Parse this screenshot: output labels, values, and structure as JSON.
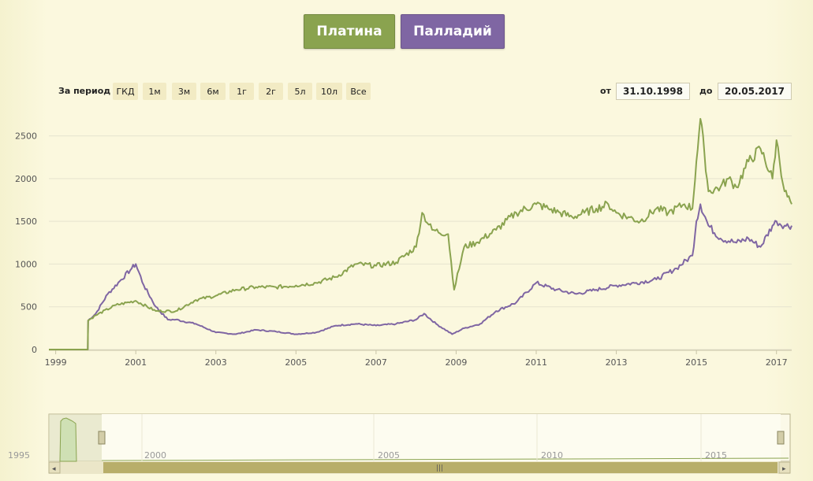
{
  "buttons": {
    "platinum": "Платина",
    "palladium": "Палладий"
  },
  "range_selector": {
    "label": "За период",
    "options": [
      "ГКД",
      "1м",
      "3м",
      "6м",
      "1г",
      "2г",
      "5л",
      "10л",
      "Все"
    ]
  },
  "date_range": {
    "from_label": "от",
    "from": "31.10.1998",
    "to_label": "до",
    "to": "20.05.2017"
  },
  "colors": {
    "platinum": "#8aa34f",
    "palladium": "#7f66a3"
  },
  "chart_data": {
    "type": "line",
    "title": "",
    "xlabel": "",
    "ylabel": "",
    "ylim": [
      0,
      2800
    ],
    "xlim": [
      1998.83,
      2017.38
    ],
    "yticks": [
      0,
      500,
      1000,
      1500,
      2000,
      2500
    ],
    "xticks": [
      1999,
      2001,
      2003,
      2005,
      2007,
      2009,
      2011,
      2013,
      2015,
      2017
    ],
    "x_tick_labels": [
      "1999",
      "2001",
      "2003",
      "2005",
      "2007",
      "2009",
      "2011",
      "2013",
      "2015",
      "2017"
    ],
    "series": [
      {
        "color": "#8aa34f",
        "x": [
          1998.83,
          1999.8,
          1999.81,
          2000.0,
          2000.5,
          2001.0,
          2001.5,
          2002.0,
          2002.5,
          2003.0,
          2003.5,
          2004.0,
          2004.5,
          2005.0,
          2005.5,
          2006.0,
          2006.5,
          2007.0,
          2007.5,
          2008.0,
          2008.15,
          2008.4,
          2008.8,
          2008.95,
          2009.2,
          2009.5,
          2010.0,
          2010.5,
          2011.0,
          2011.3,
          2011.6,
          2011.9,
          2012.2,
          2012.5,
          2012.8,
          2013.0,
          2013.3,
          2013.6,
          2014.0,
          2014.3,
          2014.7,
          2014.9,
          2015.0,
          2015.1,
          2015.2,
          2015.3,
          2015.6,
          2015.8,
          2016.0,
          2016.3,
          2016.6,
          2016.9,
          2017.0,
          2017.2,
          2017.38
        ],
        "y": [
          0,
          0,
          340,
          400,
          520,
          570,
          450,
          450,
          580,
          630,
          700,
          730,
          730,
          750,
          780,
          850,
          1000,
          980,
          1020,
          1200,
          1600,
          1400,
          1350,
          700,
          1200,
          1250,
          1400,
          1600,
          1700,
          1650,
          1600,
          1550,
          1600,
          1650,
          1700,
          1600,
          1550,
          1500,
          1650,
          1600,
          1700,
          1650,
          2200,
          2700,
          2300,
          1850,
          1900,
          2000,
          1900,
          2200,
          2350,
          2000,
          2450,
          1850,
          1700
        ]
      },
      {
        "color": "#7f66a3",
        "x": [
          1998.83,
          1999.8,
          1999.81,
          2000.0,
          2000.3,
          2000.6,
          2000.9,
          2001.0,
          2001.2,
          2001.5,
          2001.8,
          2002.0,
          2002.5,
          2003.0,
          2003.5,
          2004.0,
          2004.5,
          2005.0,
          2005.5,
          2006.0,
          2006.5,
          2007.0,
          2007.5,
          2008.0,
          2008.2,
          2008.5,
          2008.9,
          2009.2,
          2009.6,
          2010.0,
          2010.5,
          2011.0,
          2011.5,
          2012.0,
          2012.5,
          2013.0,
          2013.5,
          2014.0,
          2014.5,
          2014.9,
          2015.0,
          2015.1,
          2015.3,
          2015.6,
          2016.0,
          2016.3,
          2016.6,
          2016.9,
          2017.0,
          2017.2,
          2017.38
        ],
        "y": [
          0,
          0,
          340,
          420,
          650,
          800,
          950,
          1000,
          750,
          500,
          350,
          350,
          300,
          200,
          180,
          230,
          210,
          180,
          200,
          280,
          300,
          280,
          300,
          350,
          420,
          300,
          180,
          250,
          300,
          450,
          550,
          780,
          700,
          650,
          700,
          750,
          780,
          820,
          950,
          1100,
          1500,
          1700,
          1450,
          1300,
          1250,
          1300,
          1200,
          1450,
          1500,
          1450,
          1450
        ]
      }
    ],
    "navigator": {
      "x_tick_labels": [
        "1995",
        "2000",
        "2005",
        "2010",
        "2015"
      ]
    }
  }
}
